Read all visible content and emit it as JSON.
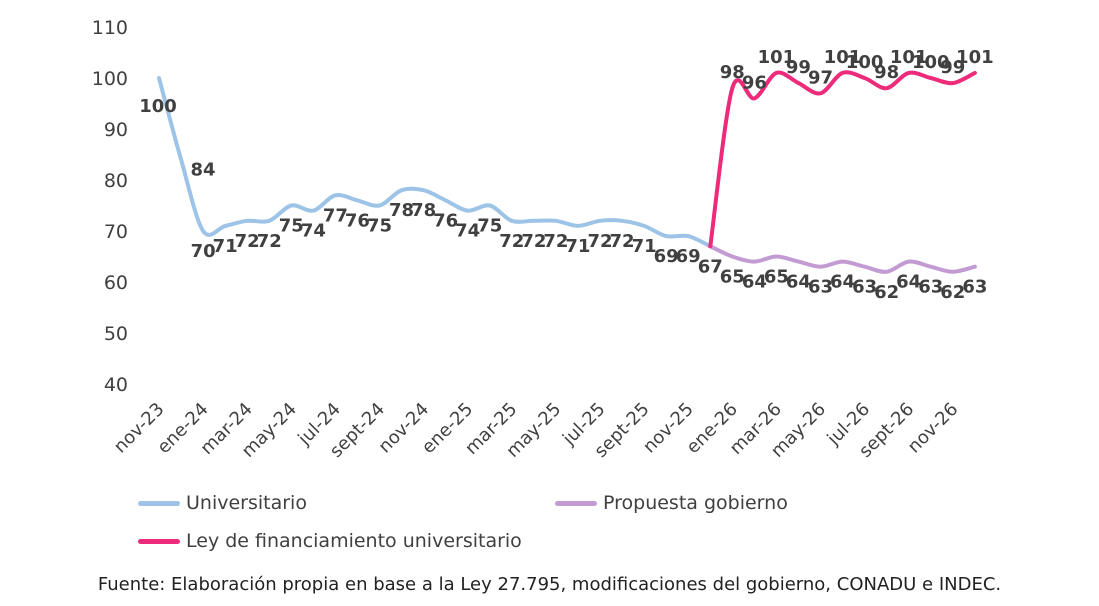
{
  "chart_data": {
    "type": "line",
    "x": [
      "nov-23",
      "dic-23",
      "ene-24",
      "feb-24",
      "mar-24",
      "abr-24",
      "may-24",
      "jun-24",
      "jul-24",
      "ago-24",
      "sept-24",
      "oct-24",
      "nov-24",
      "dic-24",
      "ene-25",
      "feb-25",
      "mar-25",
      "abr-25",
      "may-25",
      "jun-25",
      "jul-25",
      "ago-25",
      "sept-25",
      "oct-25",
      "nov-25",
      "dic-25",
      "ene-26",
      "feb-26",
      "mar-26",
      "abr-26",
      "may-26",
      "jun-26",
      "jul-26",
      "ago-26",
      "sept-26",
      "oct-26",
      "nov-26",
      "dic-26"
    ],
    "xtick_labels": [
      "nov-23",
      "ene-24",
      "mar-24",
      "may-24",
      "jul-24",
      "sept-24",
      "nov-24",
      "ene-25",
      "mar-25",
      "may-25",
      "jul-25",
      "sept-25",
      "nov-25",
      "ene-26",
      "mar-26",
      "may-26",
      "jul-26",
      "sept-26",
      "nov-26"
    ],
    "series": [
      {
        "name": "Universitario",
        "color": "#9dc3e6",
        "values": [
          100,
          84,
          70,
          71,
          72,
          72,
          75,
          74,
          77,
          76,
          75,
          78,
          78,
          76,
          74,
          75,
          72,
          72,
          72,
          71,
          72,
          72,
          71,
          69,
          69,
          67,
          null,
          null,
          null,
          null,
          null,
          null,
          null,
          null,
          null,
          null,
          null,
          null
        ]
      },
      {
        "name": "Propuesta gobierno",
        "color": "#c39bd3",
        "values": [
          null,
          null,
          null,
          null,
          null,
          null,
          null,
          null,
          null,
          null,
          null,
          null,
          null,
          null,
          null,
          null,
          null,
          null,
          null,
          null,
          null,
          null,
          null,
          null,
          null,
          67,
          65,
          64,
          65,
          64,
          63,
          64,
          63,
          62,
          64,
          63,
          62,
          63
        ]
      },
      {
        "name": "Ley de financiamiento universitario",
        "color": "#ee2a7b",
        "values": [
          null,
          null,
          null,
          null,
          null,
          null,
          null,
          null,
          null,
          null,
          null,
          null,
          null,
          null,
          null,
          null,
          null,
          null,
          null,
          null,
          null,
          null,
          null,
          null,
          null,
          67,
          98,
          96,
          101,
          99,
          97,
          101,
          100,
          98,
          101,
          100,
          99,
          101
        ]
      }
    ],
    "yticks": [
      40,
      50,
      60,
      70,
      80,
      90,
      100,
      110
    ],
    "ylim": [
      40,
      110
    ],
    "title": "",
    "xlabel": "",
    "ylabel": "",
    "grid": false,
    "legend_position": "bottom"
  },
  "legend": [
    {
      "label": "Universitario",
      "color": "#9dc3e6"
    },
    {
      "label": "Propuesta gobierno",
      "color": "#c39bd3"
    },
    {
      "label": "Ley de financiamiento universitario",
      "color": "#ee2a7b"
    }
  ],
  "source": "Fuente: Elaboración propia en base a la Ley 27.795, modificaciones del gobierno, CONADU e INDEC."
}
